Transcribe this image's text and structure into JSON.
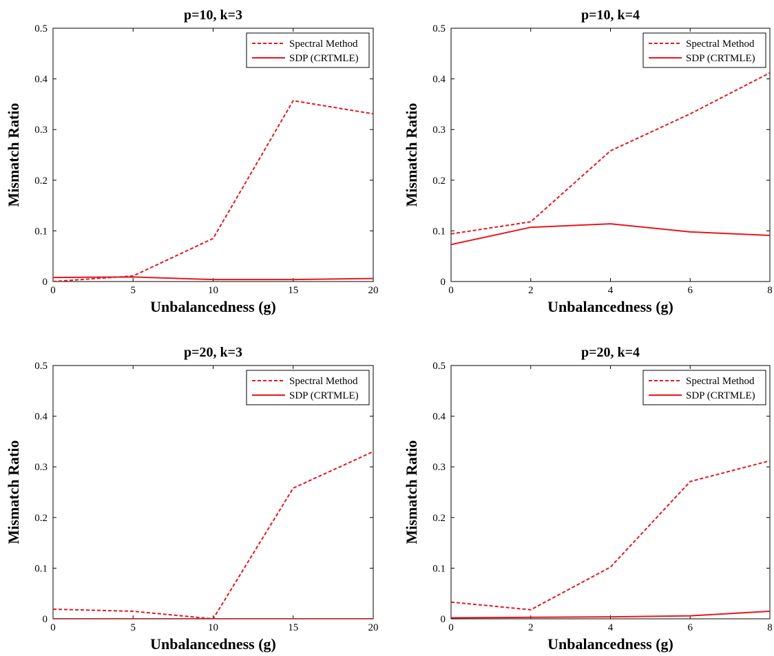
{
  "colors": {
    "series": "#e8141e",
    "axis": "#000000",
    "background": "#ffffff"
  },
  "chart_data": [
    {
      "type": "line",
      "title": "p=10, k=3",
      "xlabel": "Unbalancedness (g)",
      "ylabel": "Mismatch Ratio",
      "xlim": [
        0,
        20
      ],
      "ylim": [
        0,
        0.5
      ],
      "xticks": [
        "0",
        "5",
        "10",
        "15",
        "20"
      ],
      "yticks": [
        "0",
        "0.1",
        "0.2",
        "0.3",
        "0.4",
        "0.5"
      ],
      "grid": false,
      "legend_position": "top-right",
      "x": [
        0,
        5,
        10,
        15,
        20
      ],
      "series": [
        {
          "name": "Spectral Method",
          "style": "dashed",
          "values": [
            0.0,
            0.011,
            0.085,
            0.357,
            0.331
          ]
        },
        {
          "name": "SDP (CRTMLE)",
          "style": "solid",
          "values": [
            0.008,
            0.009,
            0.004,
            0.004,
            0.006
          ]
        }
      ]
    },
    {
      "type": "line",
      "title": "p=10, k=4",
      "xlabel": "Unbalancedness (g)",
      "ylabel": "Mismatch Ratio",
      "xlim": [
        0,
        8
      ],
      "ylim": [
        0,
        0.5
      ],
      "xticks": [
        "0",
        "2",
        "4",
        "6",
        "8"
      ],
      "yticks": [
        "0",
        "0.1",
        "0.2",
        "0.3",
        "0.4",
        "0.5"
      ],
      "grid": false,
      "legend_position": "top-right",
      "x": [
        0,
        2,
        4,
        6,
        8
      ],
      "series": [
        {
          "name": "Spectral Method",
          "style": "dashed",
          "values": [
            0.094,
            0.118,
            0.258,
            0.331,
            0.412
          ]
        },
        {
          "name": "SDP (CRTMLE)",
          "style": "solid",
          "values": [
            0.073,
            0.107,
            0.114,
            0.098,
            0.091
          ]
        }
      ]
    },
    {
      "type": "line",
      "title": "p=20, k=3",
      "xlabel": "Unbalancedness (g)",
      "ylabel": "Mismatch Ratio",
      "xlim": [
        0,
        20
      ],
      "ylim": [
        0,
        0.5
      ],
      "xticks": [
        "0",
        "5",
        "10",
        "15",
        "20"
      ],
      "yticks": [
        "0",
        "0.1",
        "0.2",
        "0.3",
        "0.4",
        "0.5"
      ],
      "grid": false,
      "legend_position": "top-right",
      "x": [
        0,
        5,
        10,
        15,
        20
      ],
      "series": [
        {
          "name": "Spectral Method",
          "style": "dashed",
          "values": [
            0.019,
            0.015,
            0.0,
            0.258,
            0.33
          ]
        },
        {
          "name": "SDP (CRTMLE)",
          "style": "solid",
          "values": [
            0.0,
            0.0,
            0.0,
            0.0,
            0.0
          ]
        }
      ]
    },
    {
      "type": "line",
      "title": "p=20, k=4",
      "xlabel": "Unbalancedness (g)",
      "ylabel": "Mismatch Ratio",
      "xlim": [
        0,
        8
      ],
      "ylim": [
        0,
        0.5
      ],
      "xticks": [
        "0",
        "2",
        "4",
        "6",
        "8"
      ],
      "yticks": [
        "0",
        "0.1",
        "0.2",
        "0.3",
        "0.4",
        "0.5"
      ],
      "grid": false,
      "legend_position": "top-right",
      "x": [
        0,
        2,
        4,
        6,
        8
      ],
      "series": [
        {
          "name": "Spectral Method",
          "style": "dashed",
          "values": [
            0.033,
            0.018,
            0.102,
            0.271,
            0.312
          ]
        },
        {
          "name": "SDP (CRTMLE)",
          "style": "solid",
          "values": [
            0.002,
            0.003,
            0.004,
            0.006,
            0.015
          ]
        }
      ]
    }
  ]
}
